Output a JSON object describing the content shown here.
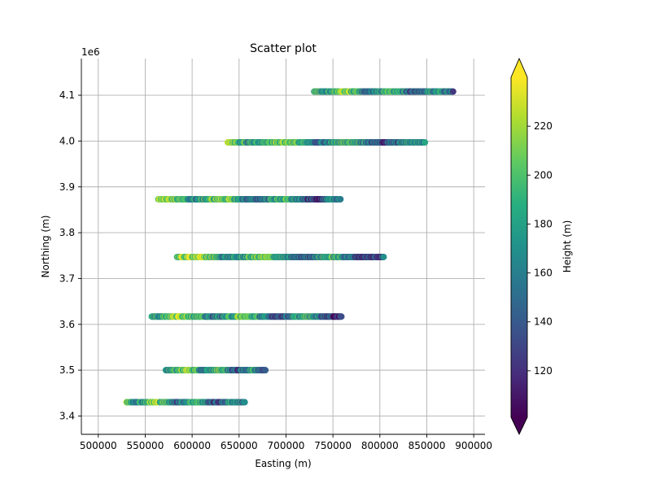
{
  "chart_data": {
    "type": "scatter",
    "title": "Scatter plot",
    "xlabel": "Easting (m)",
    "ylabel": "Northing (m)",
    "y_offset_label": "1e6",
    "xlim": [
      482000,
      912000
    ],
    "ylim": [
      3360000,
      4180000
    ],
    "x_ticks": [
      500000,
      550000,
      600000,
      650000,
      700000,
      750000,
      800000,
      850000,
      900000
    ],
    "x_tick_labels": [
      "500000",
      "550000",
      "600000",
      "650000",
      "700000",
      "750000",
      "800000",
      "850000",
      "900000"
    ],
    "y_ticks": [
      3400000,
      3500000,
      3600000,
      3700000,
      3800000,
      3900000,
      4000000,
      4100000
    ],
    "y_tick_labels": [
      "3.4",
      "3.5",
      "3.6",
      "3.7",
      "3.8",
      "3.9",
      "4.0",
      "4.1"
    ],
    "grid": true,
    "colormap": "viridis",
    "colorbar": {
      "label": "Height (m)",
      "range": [
        101,
        240
      ],
      "ticks": [
        120,
        140,
        160,
        180,
        200,
        220
      ],
      "tick_labels": [
        "120",
        "140",
        "160",
        "180",
        "200",
        "220"
      ],
      "extend": "both"
    },
    "flight_lines": [
      {
        "northing": 4108000,
        "easting_range": [
          730000,
          878000
        ]
      },
      {
        "northing": 3997000,
        "easting_range": [
          638000,
          848000
        ]
      },
      {
        "northing": 3873000,
        "easting_range": [
          564000,
          758000
        ]
      },
      {
        "northing": 3747000,
        "easting_range": [
          584000,
          804000
        ]
      },
      {
        "northing": 3617000,
        "easting_range": [
          557000,
          759000
        ]
      },
      {
        "northing": 3500000,
        "easting_range": [
          572000,
          678000
        ]
      },
      {
        "northing": 3430000,
        "easting_range": [
          530000,
          656000
        ]
      }
    ]
  }
}
